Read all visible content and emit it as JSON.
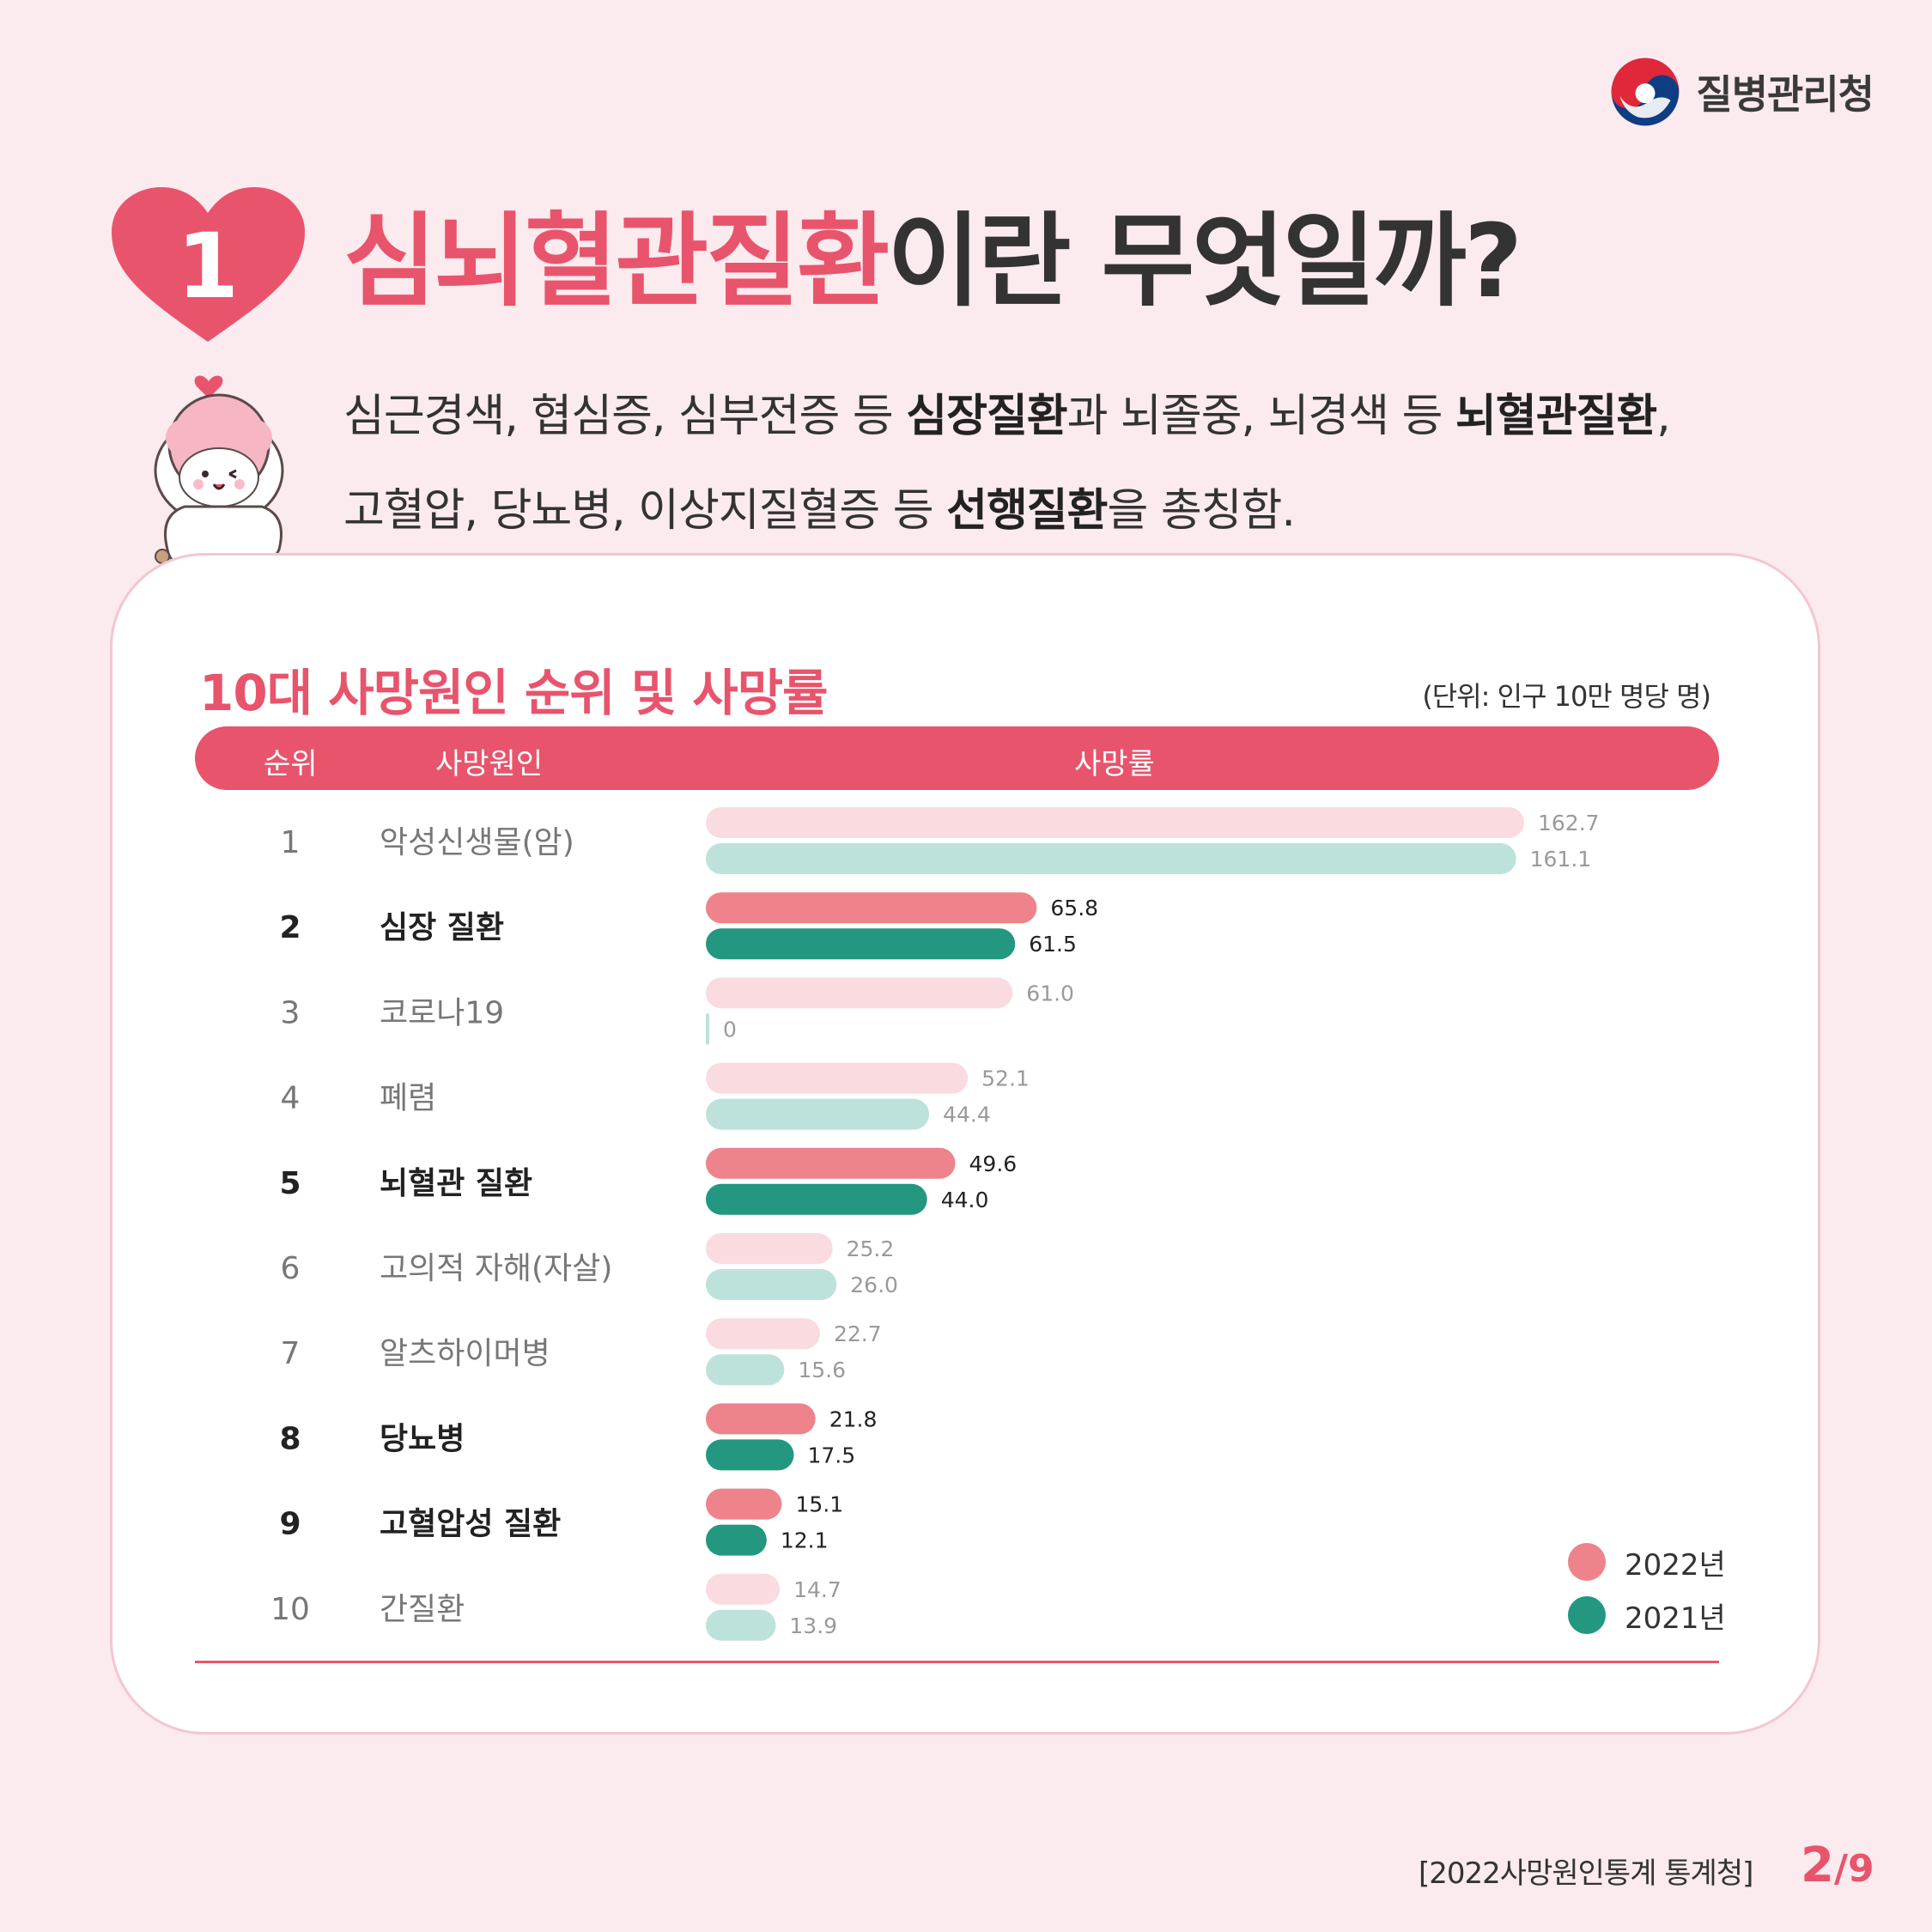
{
  "agency": {
    "name": "질병관리청"
  },
  "heading": {
    "number": "1",
    "highlight": "심뇌혈관질환",
    "rest": "이란 무엇일까?"
  },
  "description": {
    "line1": [
      {
        "text": "심근경색, 협심증, 심부전증 등 ",
        "bold": false
      },
      {
        "text": "심장질환",
        "bold": true
      },
      {
        "text": "과 뇌졸중, 뇌경색 등 ",
        "bold": false
      },
      {
        "text": "뇌혈관질환",
        "bold": true
      },
      {
        "text": ",",
        "bold": false
      }
    ],
    "line2": [
      {
        "text": "고혈압, 당뇨병, 이상지질혈증 등 ",
        "bold": false
      },
      {
        "text": "선행질환",
        "bold": true
      },
      {
        "text": "을 총칭함.",
        "bold": false
      }
    ]
  },
  "chart_header": {
    "title": "10대 사망원인 순위 및 사망률",
    "unit": "(단위: 인구 10만 명당 명)",
    "col_rank": "순위",
    "col_cause": "사망원인",
    "col_rate": "사망률"
  },
  "chart_data": {
    "type": "bar",
    "orientation": "horizontal",
    "title": "10대 사망원인 순위 및 사망률",
    "unit": "(단위: 인구 10만 명당 명)",
    "categories": [
      "악성신생물(암)",
      "심장 질환",
      "코로나19",
      "폐렴",
      "뇌혈관 질환",
      "고의적 자해(자살)",
      "알츠하이머병",
      "당뇨병",
      "고혈압성 질환",
      "간질환"
    ],
    "ranks": [
      "1",
      "2",
      "3",
      "4",
      "5",
      "6",
      "7",
      "8",
      "9",
      "10"
    ],
    "highlighted": [
      false,
      true,
      false,
      false,
      true,
      false,
      false,
      true,
      true,
      false
    ],
    "series": [
      {
        "name": "2022년",
        "values": [
          162.7,
          65.8,
          61.0,
          52.1,
          49.6,
          25.2,
          22.7,
          21.8,
          15.1,
          14.7
        ],
        "labels": [
          "162.7",
          "65.8",
          "61.0",
          "52.1",
          "49.6",
          "25.2",
          "22.7",
          "21.8",
          "15.1",
          "14.7"
        ],
        "color": "#ee838c",
        "light_color": "#fadbe0"
      },
      {
        "name": "2021년",
        "values": [
          161.1,
          61.5,
          0,
          44.4,
          44.0,
          26.0,
          15.6,
          17.5,
          12.1,
          13.9
        ],
        "labels": [
          "161.1",
          "61.5",
          "0",
          "44.4",
          "44.0",
          "26.0",
          "15.6",
          "17.5",
          "12.1",
          "13.9"
        ],
        "color": "#23977f",
        "light_color": "#bde2dc"
      }
    ],
    "xlim": [
      0,
      162.7
    ],
    "legend_position": "bottom-right",
    "grid": false
  },
  "legend": {
    "y2022": "2022년",
    "y2021": "2021년"
  },
  "footer": {
    "source": "[2022사망원인통계 통계청]",
    "page_current": "2",
    "page_total": "/9"
  },
  "colors": {
    "background": "#fbeaee",
    "accent": "#e8546c",
    "text": "#333333"
  }
}
